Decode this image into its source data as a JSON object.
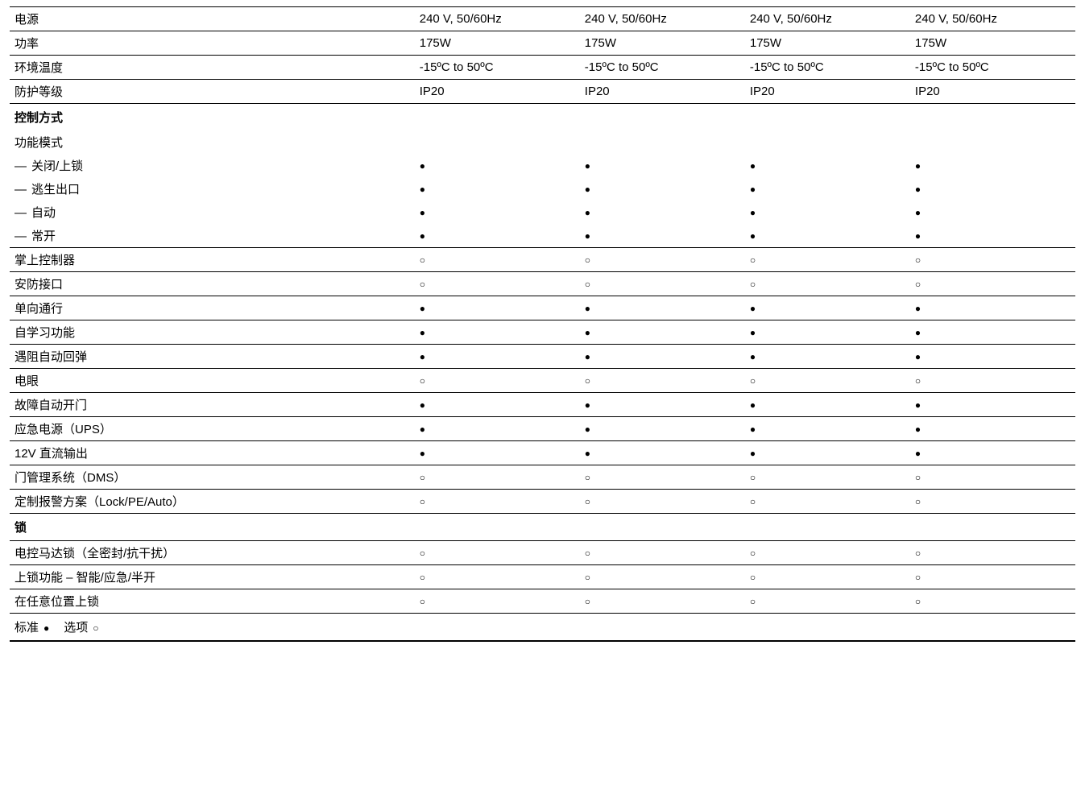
{
  "symbols": {
    "filled": "●",
    "open": "○"
  },
  "colWidths": {
    "label": "38%",
    "value": "15.5%"
  },
  "topSection": {
    "rows": [
      {
        "label": "电源",
        "values": [
          "240 V, 50/60Hz",
          "240 V, 50/60Hz",
          "240 V, 50/60Hz",
          "240 V, 50/60Hz"
        ]
      },
      {
        "label": "功率",
        "values": [
          "175W",
          "175W",
          "175W",
          "175W"
        ]
      },
      {
        "label": "环境温度",
        "values": [
          "-15ºC to 50ºC",
          "-15ºC to 50ºC",
          "-15ºC to 50ºC",
          "-15ºC to 50ºC"
        ]
      },
      {
        "label": "防护等级",
        "values": [
          "IP20",
          "IP20",
          "IP20",
          "IP20"
        ]
      }
    ]
  },
  "controlSection": {
    "header": "控制方式",
    "modesLabel": "功能模式",
    "modes": [
      {
        "label": "关闭/上锁",
        "values": [
          "filled",
          "filled",
          "filled",
          "filled"
        ]
      },
      {
        "label": "逃生出口",
        "values": [
          "filled",
          "filled",
          "filled",
          "filled"
        ]
      },
      {
        "label": "自动",
        "values": [
          "filled",
          "filled",
          "filled",
          "filled"
        ]
      },
      {
        "label": "常开",
        "values": [
          "filled",
          "filled",
          "filled",
          "filled"
        ]
      }
    ],
    "rows": [
      {
        "label": "掌上控制器",
        "values": [
          "open",
          "open",
          "open",
          "open"
        ]
      },
      {
        "label": "安防接口",
        "values": [
          "open",
          "open",
          "open",
          "open"
        ]
      },
      {
        "label": "单向通行",
        "values": [
          "filled",
          "filled",
          "filled",
          "filled"
        ]
      },
      {
        "label": "自学习功能",
        "values": [
          "filled",
          "filled",
          "filled",
          "filled"
        ]
      },
      {
        "label": "遇阻自动回弹",
        "values": [
          "filled",
          "filled",
          "filled",
          "filled"
        ]
      },
      {
        "label": "电眼",
        "values": [
          "open",
          "open",
          "open",
          "open"
        ]
      },
      {
        "label": "故障自动开门",
        "values": [
          "filled",
          "filled",
          "filled",
          "filled"
        ]
      },
      {
        "label": "应急电源（UPS）",
        "values": [
          "filled",
          "filled",
          "filled",
          "filled"
        ]
      },
      {
        "label": "12V 直流输出",
        "values": [
          "filled",
          "filled",
          "filled",
          "filled"
        ]
      },
      {
        "label": "门管理系统（DMS）",
        "values": [
          "open",
          "open",
          "open",
          "open"
        ]
      },
      {
        "label": "定制报警方案（Lock/PE/Auto）",
        "values": [
          "open",
          "open",
          "open",
          "open"
        ]
      }
    ]
  },
  "lockSection": {
    "header": "锁",
    "rows": [
      {
        "label": "电控马达锁（全密封/抗干扰）",
        "values": [
          "open",
          "open",
          "open",
          "open"
        ]
      },
      {
        "label": "上锁功能 – 智能/应急/半开",
        "values": [
          "open",
          "open",
          "open",
          "open"
        ]
      },
      {
        "label": "在任意位置上锁",
        "values": [
          "open",
          "open",
          "open",
          "open"
        ]
      }
    ]
  },
  "legend": {
    "standard": "标准",
    "optional": "选项"
  }
}
